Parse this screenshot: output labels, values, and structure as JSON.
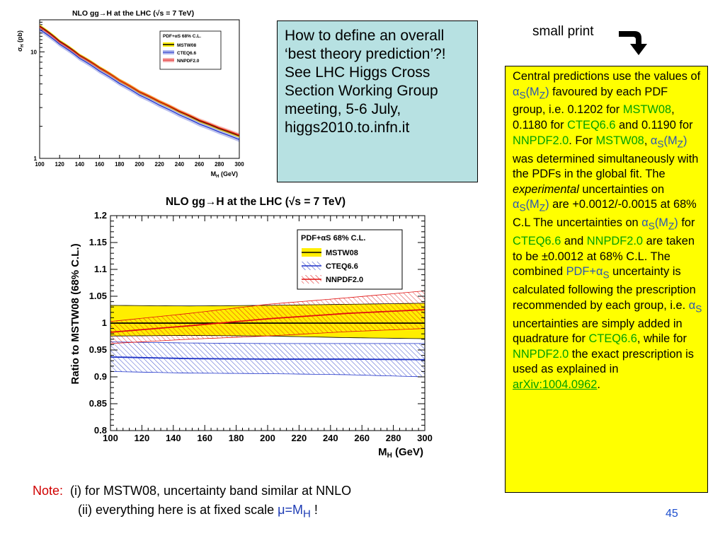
{
  "slide": {
    "callout": "How to define an overall ‘best theory prediction’?! See LHC Higgs Cross Section Working Group meeting, 5-6 July, higgs2010.to.infn.it",
    "small_print_label": "small print",
    "note_box": {
      "p1": "Central predictions use the values of ",
      "alpha": "α",
      "sub_s": "S",
      "paren_mz": "(M",
      "sub_z": "Z",
      "close": ")",
      "p2": " favoured by each PDF group, i.e. 0.1202 for ",
      "mstw": "MSTW08",
      "p3": ", 0.1180 for ",
      "cteq": "CTEQ6.6",
      "p4": " and 0.1190 for ",
      "nnpdf": "NNPDF2.0",
      "p5": ". For ",
      "p6": ", ",
      "p7": " was determined simultaneously with the PDFs in the global fit. The ",
      "experimental": "experimental",
      "p8": " uncertainties on ",
      "p9": " are +0.0012/-0.0015 at 68% C.L The uncertainties on ",
      "p10": " for ",
      "p11": " and ",
      "p12": " are taken to be ±0.0012 at 68% C.L. The combined ",
      "pdfas": "PDF+α",
      "p13": " uncertainty is calculated following the prescription recommended by each group, i.e. ",
      "p14": " uncertainties are simply added in quadrature for ",
      "p15": ", while for ",
      "p16": " the exact prescription is used as explained in ",
      "arxiv": "arXiv:1004.0962",
      "p17": "."
    },
    "bottom_note": {
      "note_label": "Note:",
      "line1": "(i) for MSTW08, uncertainty band similar at NNLO",
      "line2": "(ii) everything here is at fixed scale ",
      "mu": "μ=M",
      "mu_sub": "H",
      "bang": " !"
    },
    "page_number": "45"
  },
  "chart_data": [
    {
      "type": "line",
      "title": "NLO gg→H at the LHC (√s = 7 TeV)",
      "xlabel": "M_H (GeV)",
      "ylabel": "σ_H (pb)",
      "yscale": "log",
      "xlim": [
        100,
        300
      ],
      "ylim": [
        1,
        20
      ],
      "xticks": [
        100,
        120,
        140,
        160,
        180,
        200,
        220,
        240,
        260,
        280,
        300
      ],
      "yticks": [
        1,
        10
      ],
      "legend_title": "PDF+α_S 68% C.L.",
      "legend_position": "top-right",
      "series": [
        {
          "name": "MSTW08",
          "color": "#000000",
          "band": "#ffee00",
          "x": [
            100,
            120,
            140,
            160,
            180,
            200,
            220,
            240,
            260,
            280,
            300
          ],
          "y": [
            17.5,
            12.6,
            9.3,
            7.1,
            5.4,
            4.2,
            3.4,
            2.75,
            2.25,
            1.9,
            1.62
          ]
        },
        {
          "name": "CTEQ6.6",
          "color": "#1e32c8",
          "band": "#1e32c8",
          "x": [
            100,
            120,
            140,
            160,
            180,
            200,
            220,
            240,
            260,
            280,
            300
          ],
          "y": [
            16.2,
            11.8,
            8.7,
            6.6,
            5.05,
            3.93,
            3.16,
            2.56,
            2.1,
            1.77,
            1.5
          ]
        },
        {
          "name": "NNPDF2.0",
          "color": "#e01010",
          "band": "#e01010",
          "x": [
            100,
            120,
            140,
            160,
            180,
            200,
            220,
            240,
            260,
            280,
            300
          ],
          "y": [
            17.2,
            12.4,
            9.2,
            7.05,
            5.4,
            4.22,
            3.42,
            2.78,
            2.29,
            1.94,
            1.66
          ]
        }
      ]
    },
    {
      "type": "line",
      "title": "NLO gg→H at the LHC (√s = 7 TeV)",
      "xlabel": "M_H (GeV)",
      "ylabel": "Ratio to MSTW08 (68% C.L.)",
      "xlim": [
        100,
        300
      ],
      "ylim": [
        0.8,
        1.2
      ],
      "xticks": [
        100,
        120,
        140,
        160,
        180,
        200,
        220,
        240,
        260,
        280,
        300
      ],
      "yticks": [
        0.8,
        0.85,
        0.9,
        0.95,
        1,
        1.05,
        1.1,
        1.15,
        1.2
      ],
      "legend_title": "PDF+α_S 68% C.L.",
      "legend_position": "top-right",
      "series": [
        {
          "name": "MSTW08",
          "color": "#000000",
          "band": "#ffee00",
          "x": [
            100,
            150,
            200,
            250,
            300
          ],
          "y": [
            1.0,
            1.0,
            1.0,
            1.0,
            1.0
          ],
          "y_low": [
            0.976,
            0.977,
            0.976,
            0.973,
            0.971
          ],
          "y_high": [
            1.033,
            1.032,
            1.033,
            1.035,
            1.037
          ]
        },
        {
          "name": "CTEQ6.6",
          "color": "#1e32c8",
          "band": "#1e32c8",
          "x": [
            100,
            150,
            200,
            250,
            300
          ],
          "y": [
            0.937,
            0.934,
            0.933,
            0.933,
            0.932
          ],
          "y_low": [
            0.91,
            0.907,
            0.906,
            0.904,
            0.9
          ],
          "y_high": [
            0.965,
            0.963,
            0.962,
            0.962,
            0.962
          ]
        },
        {
          "name": "NNPDF2.0",
          "color": "#e01010",
          "band": "#e01010",
          "x": [
            100,
            150,
            200,
            250,
            300
          ],
          "y": [
            0.983,
            0.995,
            1.008,
            1.018,
            1.025
          ],
          "y_low": [
            0.962,
            0.97,
            0.976,
            0.984,
            0.99
          ],
          "y_high": [
            1.003,
            1.018,
            1.035,
            1.047,
            1.06
          ]
        }
      ]
    }
  ]
}
